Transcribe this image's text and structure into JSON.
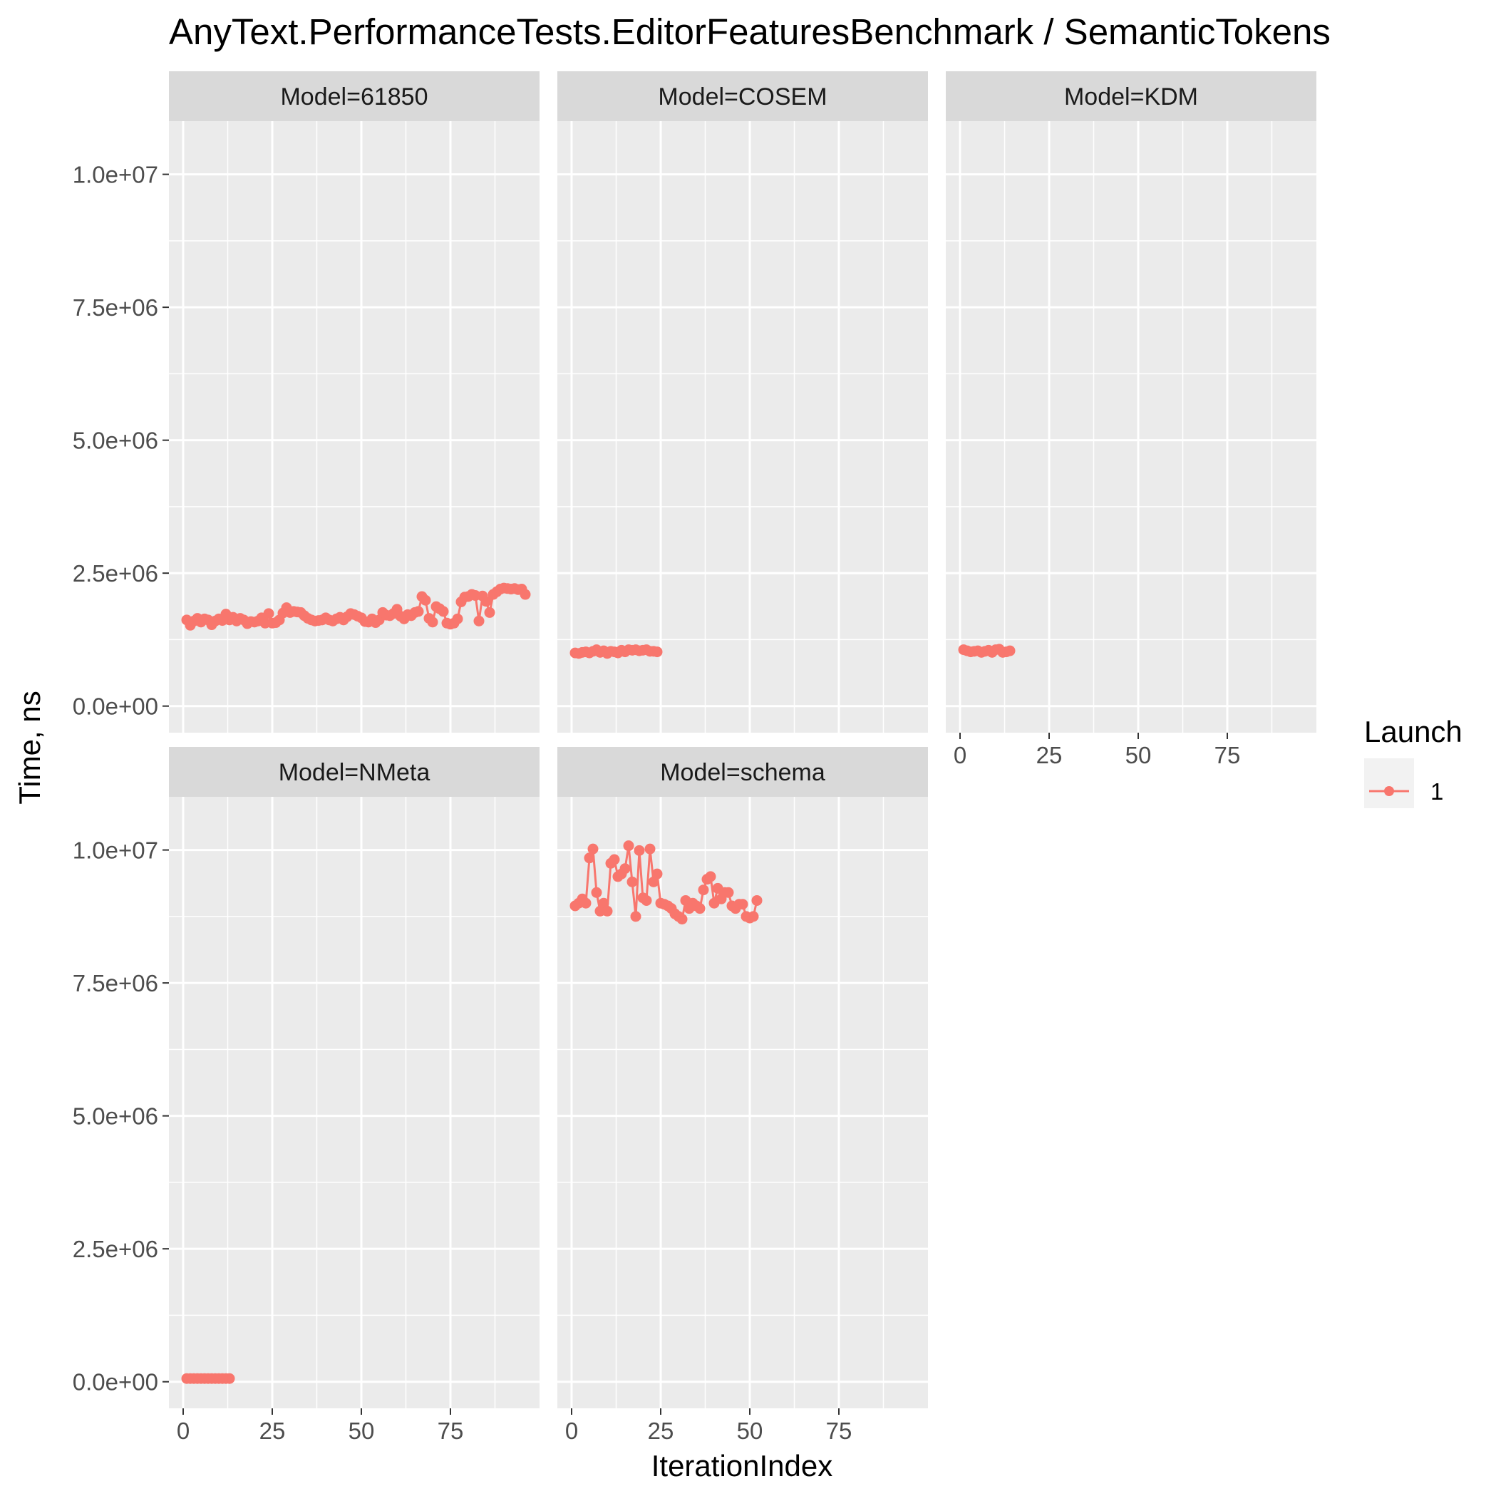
{
  "chart_data": {
    "type": "line",
    "title": "AnyText.PerformanceTests.EditorFeaturesBenchmark / SemanticTokens",
    "xlabel": "IterationIndex",
    "ylabel": "Time, ns",
    "xlim": [
      -4,
      100
    ],
    "ylim": [
      -500000,
      11000000
    ],
    "x_ticks": [
      0,
      25,
      50,
      75
    ],
    "x_tick_labels": [
      "0",
      "25",
      "50",
      "75"
    ],
    "y_ticks": [
      0,
      2500000,
      5000000,
      7500000,
      10000000
    ],
    "y_tick_labels": [
      "0.0e+00",
      "2.5e+06",
      "5.0e+06",
      "7.5e+06",
      "1.0e+07"
    ],
    "grid": true,
    "legend": {
      "title": "Launch",
      "position": "right",
      "entries": [
        "1"
      ]
    },
    "series_color": "#F8766D",
    "panel_background": "#EBEBEB",
    "strip_background": "#D9D9D9",
    "facets": [
      {
        "label": "Model=61850",
        "series": [
          {
            "name": "1",
            "x": [
              1,
              2,
              3,
              4,
              5,
              6,
              7,
              8,
              9,
              10,
              11,
              12,
              13,
              14,
              15,
              16,
              17,
              18,
              19,
              20,
              21,
              22,
              23,
              24,
              25,
              26,
              27,
              28,
              29,
              30,
              31,
              32,
              33,
              34,
              35,
              36,
              37,
              38,
              39,
              40,
              41,
              42,
              43,
              44,
              45,
              46,
              47,
              48,
              49,
              50,
              51,
              52,
              53,
              54,
              55,
              56,
              57,
              58,
              59,
              60,
              61,
              62,
              63,
              64,
              65,
              66,
              67,
              68,
              69,
              70,
              71,
              72,
              73,
              74,
              75,
              76,
              77,
              78,
              79,
              80,
              81,
              82,
              83,
              84,
              85,
              86,
              87,
              88,
              89,
              90,
              91,
              92,
              93,
              94,
              95,
              96
            ],
            "y": [
              1620000,
              1520000,
              1600000,
              1650000,
              1580000,
              1640000,
              1620000,
              1530000,
              1600000,
              1640000,
              1610000,
              1730000,
              1620000,
              1670000,
              1600000,
              1650000,
              1620000,
              1550000,
              1590000,
              1580000,
              1600000,
              1660000,
              1560000,
              1740000,
              1560000,
              1570000,
              1620000,
              1750000,
              1850000,
              1760000,
              1780000,
              1770000,
              1760000,
              1700000,
              1650000,
              1620000,
              1600000,
              1610000,
              1620000,
              1660000,
              1620000,
              1600000,
              1640000,
              1670000,
              1620000,
              1680000,
              1740000,
              1720000,
              1690000,
              1660000,
              1590000,
              1580000,
              1640000,
              1570000,
              1620000,
              1760000,
              1710000,
              1700000,
              1740000,
              1820000,
              1690000,
              1640000,
              1720000,
              1700000,
              1760000,
              1780000,
              2060000,
              1990000,
              1650000,
              1580000,
              1870000,
              1830000,
              1780000,
              1560000,
              1540000,
              1560000,
              1640000,
              1960000,
              2050000,
              2060000,
              2100000,
              2080000,
              1600000,
              2070000,
              1970000,
              1760000,
              2100000,
              2150000,
              2200000,
              2220000,
              2210000,
              2200000,
              2210000,
              2190000,
              2200000,
              2100000
            ]
          }
        ]
      },
      {
        "label": "Model=COSEM",
        "series": [
          {
            "name": "1",
            "x": [
              1,
              2,
              3,
              4,
              5,
              6,
              7,
              8,
              9,
              10,
              11,
              12,
              13,
              14,
              15,
              16,
              17,
              18,
              19,
              20,
              21,
              22,
              23,
              24
            ],
            "y": [
              1000000,
              990000,
              1010000,
              1020000,
              1000000,
              1030000,
              1060000,
              1010000,
              1040000,
              990000,
              1030000,
              1020000,
              1000000,
              1050000,
              1020000,
              1060000,
              1050000,
              1060000,
              1040000,
              1050000,
              1060000,
              1030000,
              1030000,
              1020000
            ]
          }
        ]
      },
      {
        "label": "Model=KDM",
        "series": [
          {
            "name": "1",
            "x": [
              1,
              2,
              3,
              4,
              5,
              6,
              7,
              8,
              9,
              10,
              11,
              12,
              13,
              14
            ],
            "y": [
              1060000,
              1040000,
              1020000,
              1030000,
              1040000,
              1010000,
              1030000,
              1050000,
              1010000,
              1060000,
              1070000,
              1010000,
              1020000,
              1040000
            ]
          }
        ]
      },
      {
        "label": "Model=NMeta",
        "series": [
          {
            "name": "1",
            "x": [
              1,
              2,
              3,
              4,
              5,
              6,
              7,
              8,
              9,
              10,
              11,
              12,
              13
            ],
            "y": [
              60000,
              60000,
              60000,
              60000,
              60000,
              60000,
              60000,
              60000,
              60000,
              60000,
              60000,
              60000,
              60000
            ]
          }
        ]
      },
      {
        "label": "Model=schema",
        "series": [
          {
            "name": "1",
            "x": [
              1,
              2,
              3,
              4,
              5,
              6,
              7,
              8,
              9,
              10,
              11,
              12,
              13,
              14,
              15,
              16,
              17,
              18,
              19,
              20,
              21,
              22,
              23,
              24,
              25,
              26,
              27,
              28,
              29,
              30,
              31,
              32,
              33,
              34,
              35,
              36,
              37,
              38,
              39,
              40,
              41,
              42,
              43,
              44,
              45,
              46,
              47,
              48,
              49,
              50,
              51,
              52
            ],
            "y": [
              8950000,
              9000000,
              9080000,
              9000000,
              9850000,
              10020000,
              9200000,
              8850000,
              9000000,
              8850000,
              9750000,
              9820000,
              9500000,
              9550000,
              9650000,
              10080000,
              9400000,
              8750000,
              9990000,
              9100000,
              9050000,
              10020000,
              9400000,
              9550000,
              9000000,
              8980000,
              8950000,
              8900000,
              8800000,
              8750000,
              8700000,
              9050000,
              8900000,
              9000000,
              8950000,
              8900000,
              9250000,
              9450000,
              9500000,
              9000000,
              9280000,
              9080000,
              9200000,
              9200000,
              8950000,
              8900000,
              8980000,
              8980000,
              8750000,
              8720000,
              8750000,
              9050000
            ]
          }
        ]
      }
    ]
  }
}
